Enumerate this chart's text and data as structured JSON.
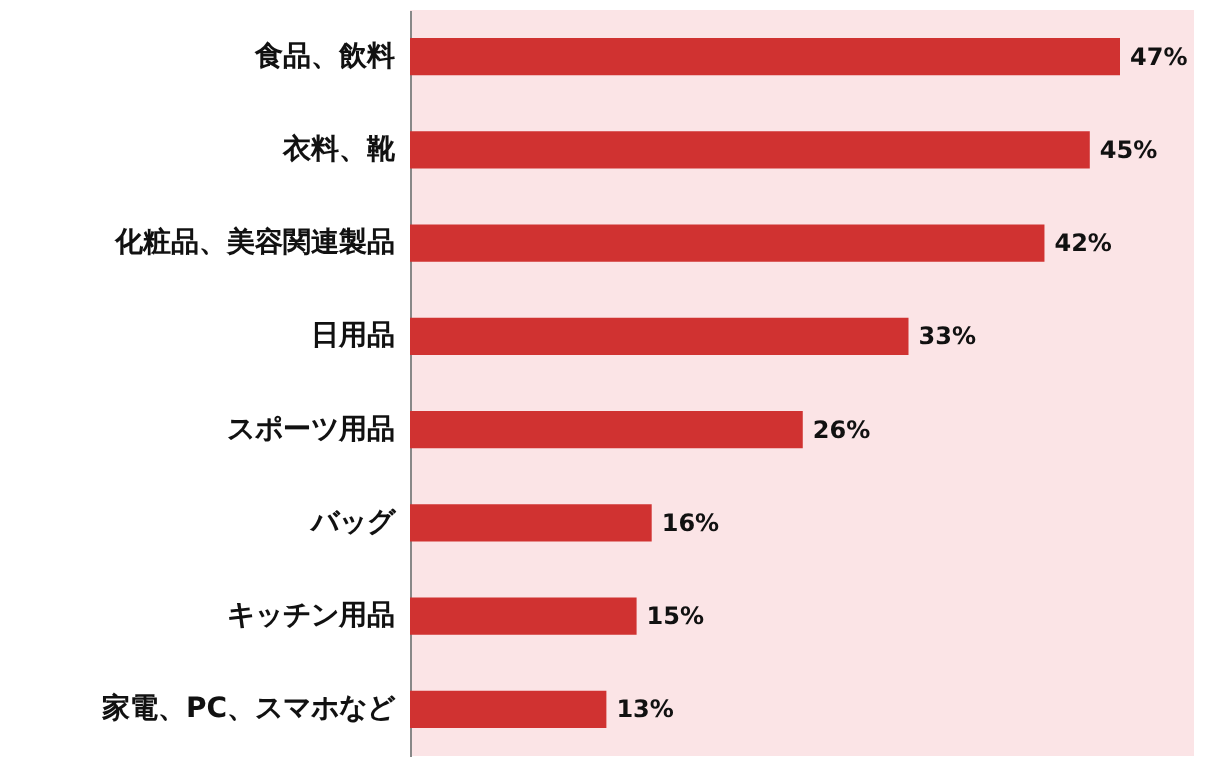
{
  "chart_data": {
    "type": "bar",
    "orientation": "horizontal",
    "categories": [
      "食品、飲料",
      "衣料、靴",
      "化粧品、美容関連製品",
      "日用品",
      "スポーツ用品",
      "バッグ",
      "キッチン用品",
      "家電、PC、スマホなど"
    ],
    "values": [
      47,
      45,
      42,
      33,
      26,
      16,
      15,
      13
    ],
    "color": "#d03231",
    "value_labels": [
      "47%",
      "45%",
      "42%",
      "33%",
      "26%",
      "16%",
      "15%",
      "13%"
    ]
  }
}
